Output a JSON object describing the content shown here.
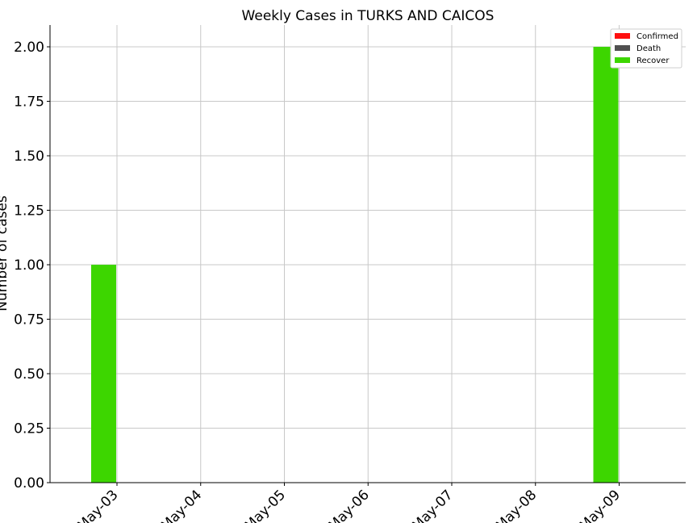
{
  "chart_data": {
    "type": "bar",
    "title": "Weekly Cases in TURKS AND CAICOS",
    "xlabel": "",
    "ylabel": "Number of cases",
    "x_ticks": [
      "May-03",
      "May-04",
      "May-05",
      "May-06",
      "May-07",
      "May-08",
      "May-09"
    ],
    "y_ticks": [
      "0.00",
      "0.25",
      "0.50",
      "0.75",
      "1.00",
      "1.25",
      "1.50",
      "1.75",
      "2.00"
    ],
    "ylim": [
      0,
      2.1
    ],
    "grid": true,
    "legend_position": "top-right",
    "series": [
      {
        "name": "Confirmed",
        "color": "#ff1010",
        "points": []
      },
      {
        "name": "Death",
        "color": "#505050",
        "points": []
      },
      {
        "name": "Recover",
        "color": "#3dd600",
        "points": [
          {
            "date": "May-03",
            "value": 1
          },
          {
            "date": "May-09",
            "value": 2
          }
        ]
      }
    ]
  }
}
